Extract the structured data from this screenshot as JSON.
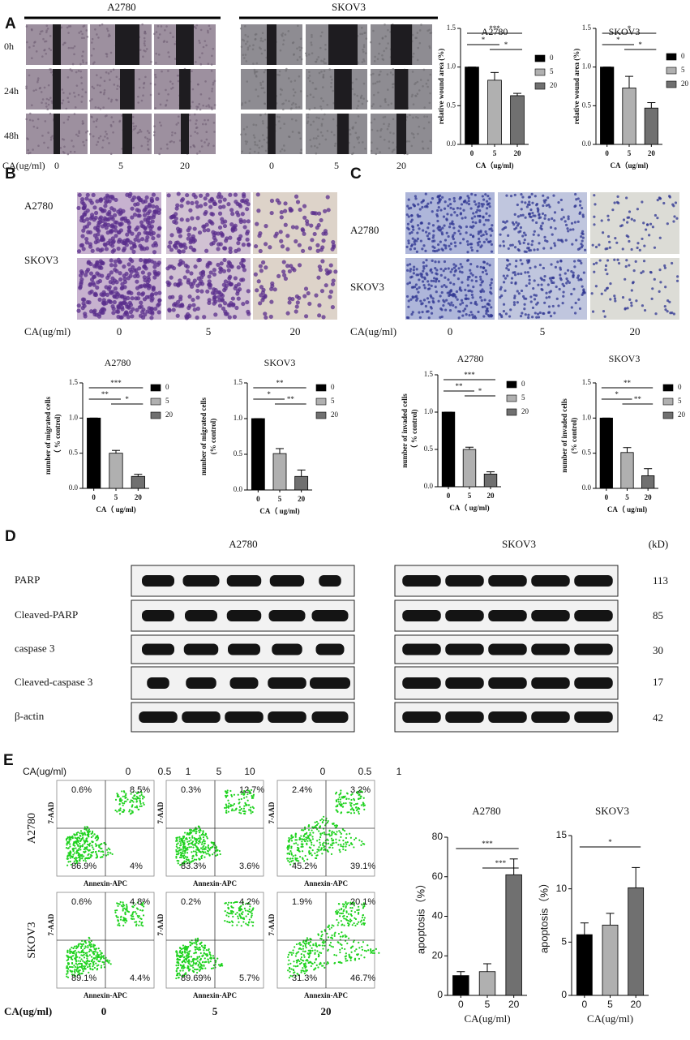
{
  "panels": {
    "A": {
      "letter": "A",
      "headers": [
        "A2780",
        "SKOV3"
      ],
      "rows": [
        "0h",
        "24h",
        "48h"
      ],
      "x_label": "CA(ug/ml)",
      "columns": [
        "0",
        "5",
        "20",
        "0",
        "5",
        "20"
      ]
    },
    "B": {
      "letter": "B",
      "rows": [
        "A2780",
        "SKOV3"
      ],
      "x_label": "CA(ug/ml)",
      "columns": [
        "0",
        "5",
        "20"
      ]
    },
    "C": {
      "letter": "C",
      "rows": [
        "A2780",
        "SKOV3"
      ],
      "x_label": "CA(ug/ml)",
      "columns": [
        "0",
        "5",
        "20"
      ]
    },
    "D": {
      "letter": "D",
      "headers": [
        "A2780",
        "SKOV3"
      ],
      "unit": "(kD)",
      "rows": [
        {
          "protein": "PARP",
          "kd": 113
        },
        {
          "protein": "Cleaved-PARP",
          "kd": 85
        },
        {
          "protein": "caspase 3",
          "kd": 30
        },
        {
          "protein": "Cleaved-caspase 3",
          "kd": 17
        },
        {
          "protein": "β-actin",
          "kd": 42
        }
      ]
    },
    "E": {
      "letter": "E",
      "overlay_label": "CA(ug/ml)",
      "overlay_values": [
        "0",
        "0.5",
        "1",
        "5",
        "10",
        "0",
        "0.5",
        "1"
      ],
      "rows": [
        "A2780",
        "SKOV3"
      ],
      "y_axis": "7-AAD",
      "x_axis": "Annexin-APC",
      "quadrants": [
        [
          "0.6%",
          "8.5%",
          "86.9%",
          "4%"
        ],
        [
          "0.3%",
          "12.7%",
          "83.3%",
          "3.6%"
        ],
        [
          "2.4%",
          "3.2%",
          "45.2%",
          "39.1%"
        ],
        [
          "0.6%",
          "4.8%",
          "89.1%",
          "4.4%"
        ],
        [
          "0.2%",
          "4.2%",
          "89.69%",
          "5.7%"
        ],
        [
          "1.9%",
          "20.1%",
          "31.3%",
          "46.7%"
        ]
      ],
      "x_label": "CA(ug/ml)",
      "columns": [
        "0",
        "5",
        "20"
      ]
    }
  },
  "chart_data": [
    {
      "type": "bar",
      "title": "A2780",
      "ylabel": [
        "relative wound area (%)"
      ],
      "xlabel": "CA（ug/ml)",
      "categories": [
        "0",
        "5",
        "20"
      ],
      "values": [
        1.0,
        0.83,
        0.63
      ],
      "errors": [
        0,
        0.1,
        0.03
      ],
      "colors": [
        "#000000",
        "#b0b0b0",
        "#707070"
      ],
      "legend": true,
      "ylim": [
        0,
        1.5
      ],
      "yticks": [
        {
          "value": 0,
          "label": "0.0"
        },
        {
          "value": 0.5,
          "label": "0.5"
        },
        {
          "value": 1,
          "label": "1.0"
        },
        {
          "value": 1.5,
          "label": "1.5"
        }
      ],
      "significance": [
        {
          "pair": [
            "0",
            "20"
          ],
          "label": "***"
        },
        {
          "pair": [
            "0",
            "5"
          ],
          "label": "*"
        },
        {
          "pair": [
            "5",
            "20"
          ],
          "label": "*"
        }
      ]
    },
    {
      "type": "bar",
      "title": "SKOV3",
      "ylabel": [
        "relative wound area (%)"
      ],
      "xlabel": "CA（ug/ml)",
      "categories": [
        "0",
        "5",
        "20"
      ],
      "values": [
        1.0,
        0.73,
        0.47
      ],
      "errors": [
        0,
        0.15,
        0.07
      ],
      "colors": [
        "#000000",
        "#b0b0b0",
        "#707070"
      ],
      "legend": true,
      "ylim": [
        0,
        1.5
      ],
      "yticks": [
        {
          "value": 0,
          "label": "0.0"
        },
        {
          "value": 0.5,
          "label": "0.5"
        },
        {
          "value": 1,
          "label": "1.0"
        },
        {
          "value": 1.5,
          "label": "1.5"
        }
      ],
      "significance": [
        {
          "pair": [
            "0",
            "20"
          ],
          "label": "*"
        },
        {
          "pair": [
            "0",
            "5"
          ],
          "label": "*"
        },
        {
          "pair": [
            "5",
            "20"
          ],
          "label": "*"
        }
      ]
    },
    {
      "type": "bar",
      "title": "A2780",
      "ylabel": [
        "number of migrated cells",
        "（ % control)"
      ],
      "xlabel": "CA（ ug/ml)",
      "categories": [
        "0",
        "5",
        "20"
      ],
      "values": [
        1.0,
        0.5,
        0.17
      ],
      "errors": [
        0,
        0.04,
        0.03
      ],
      "colors": [
        "#000000",
        "#b0b0b0",
        "#707070"
      ],
      "legend": true,
      "ylim": [
        0,
        1.5
      ],
      "yticks": [
        {
          "value": 0,
          "label": "0.0"
        },
        {
          "value": 0.5,
          "label": "0.5"
        },
        {
          "value": 1,
          "label": "1.0"
        },
        {
          "value": 1.5,
          "label": "1.5"
        }
      ],
      "significance": [
        {
          "pair": [
            "0",
            "20"
          ],
          "label": "***"
        },
        {
          "pair": [
            "0",
            "5"
          ],
          "label": "**"
        },
        {
          "pair": [
            "5",
            "20"
          ],
          "label": "*"
        }
      ]
    },
    {
      "type": "bar",
      "title": "SKOV3",
      "ylabel": [
        "number of migrated cells",
        "(% control)"
      ],
      "xlabel": "CA（ ug/ml)",
      "categories": [
        "0",
        "5",
        "20"
      ],
      "values": [
        1.0,
        0.51,
        0.19
      ],
      "errors": [
        0,
        0.07,
        0.09
      ],
      "colors": [
        "#000000",
        "#b0b0b0",
        "#707070"
      ],
      "legend": true,
      "ylim": [
        0,
        1.5
      ],
      "yticks": [
        {
          "value": 0,
          "label": "0.0"
        },
        {
          "value": 0.5,
          "label": "0.5"
        },
        {
          "value": 1,
          "label": "1.0"
        },
        {
          "value": 1.5,
          "label": "1.5"
        }
      ],
      "significance": [
        {
          "pair": [
            "0",
            "20"
          ],
          "label": "**"
        },
        {
          "pair": [
            "0",
            "5"
          ],
          "label": "*"
        },
        {
          "pair": [
            "5",
            "20"
          ],
          "label": "**"
        }
      ]
    },
    {
      "type": "bar",
      "title": "A2780",
      "ylabel": [
        "number of invaded cells",
        "（ % control)"
      ],
      "xlabel": "CA（ ug/ml)",
      "categories": [
        "0",
        "5",
        "20"
      ],
      "values": [
        1.0,
        0.5,
        0.17
      ],
      "errors": [
        0,
        0.03,
        0.03
      ],
      "colors": [
        "#000000",
        "#b0b0b0",
        "#707070"
      ],
      "legend": true,
      "ylim": [
        0,
        1.5
      ],
      "yticks": [
        {
          "value": 0,
          "label": "0.0"
        },
        {
          "value": 0.5,
          "label": "0.5"
        },
        {
          "value": 1,
          "label": "1.0"
        },
        {
          "value": 1.5,
          "label": "1.5"
        }
      ],
      "significance": [
        {
          "pair": [
            "0",
            "20"
          ],
          "label": "***"
        },
        {
          "pair": [
            "0",
            "5"
          ],
          "label": "**"
        },
        {
          "pair": [
            "5",
            "20"
          ],
          "label": "*"
        }
      ]
    },
    {
      "type": "bar",
      "title": "SKOV3",
      "ylabel": [
        "number of invaded cells",
        "(% control)"
      ],
      "xlabel": "CA（ ug/ml)",
      "categories": [
        "0",
        "5",
        "20"
      ],
      "values": [
        1.0,
        0.51,
        0.18
      ],
      "errors": [
        0,
        0.07,
        0.1
      ],
      "colors": [
        "#000000",
        "#b0b0b0",
        "#707070"
      ],
      "legend": true,
      "ylim": [
        0,
        1.5
      ],
      "yticks": [
        {
          "value": 0,
          "label": "0.0"
        },
        {
          "value": 0.5,
          "label": "0.5"
        },
        {
          "value": 1,
          "label": "1.0"
        },
        {
          "value": 1.5,
          "label": "1.5"
        }
      ],
      "significance": [
        {
          "pair": [
            "0",
            "20"
          ],
          "label": "**"
        },
        {
          "pair": [
            "0",
            "5"
          ],
          "label": "*"
        },
        {
          "pair": [
            "5",
            "20"
          ],
          "label": "**"
        }
      ]
    },
    {
      "type": "bar",
      "title": "A2780",
      "ylabel": [
        "apoptosis（%）"
      ],
      "xlabel": "CA(ug/ml)",
      "categories": [
        "0",
        "5",
        "20"
      ],
      "values": [
        10,
        12,
        61
      ],
      "errors": [
        2,
        4,
        8
      ],
      "colors": [
        "#000000",
        "#b0b0b0",
        "#707070"
      ],
      "legend": false,
      "ylim": [
        0,
        80
      ],
      "yticks": [
        0,
        20,
        40,
        60,
        80
      ],
      "significance": [
        {
          "pair": [
            "0",
            "20"
          ],
          "label": "***"
        },
        {
          "pair": [
            "5",
            "20"
          ],
          "label": "***"
        }
      ]
    },
    {
      "type": "bar",
      "title": "SKOV3",
      "ylabel": [
        "apoptosis（%）"
      ],
      "xlabel": "CA(ug/ml)",
      "categories": [
        "0",
        "5",
        "20"
      ],
      "values": [
        5.7,
        6.6,
        10.1
      ],
      "errors": [
        1.1,
        1.1,
        1.9
      ],
      "colors": [
        "#000000",
        "#b0b0b0",
        "#707070"
      ],
      "legend": false,
      "ylim": [
        0,
        15
      ],
      "yticks": [
        0,
        5,
        10,
        15
      ],
      "significance": [
        {
          "pair": [
            "0",
            "20"
          ],
          "label": "*"
        }
      ]
    }
  ]
}
